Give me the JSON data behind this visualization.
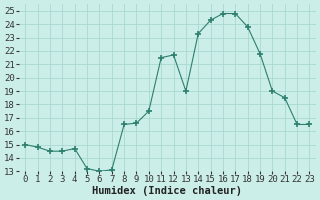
{
  "x": [
    0,
    1,
    2,
    3,
    4,
    5,
    6,
    7,
    8,
    9,
    10,
    11,
    12,
    13,
    14,
    15,
    16,
    17,
    18,
    19,
    20,
    21,
    22,
    23
  ],
  "y": [
    15.0,
    14.8,
    14.5,
    14.5,
    14.7,
    13.2,
    13.0,
    13.1,
    16.5,
    16.6,
    17.5,
    21.5,
    21.7,
    19.0,
    23.3,
    24.3,
    24.8,
    24.8,
    23.8,
    21.8,
    19.0,
    18.5,
    16.5,
    16.5
  ],
  "line_color": "#2d7f6e",
  "marker": "+",
  "marker_size": 5,
  "bg_color": "#cceee8",
  "grid_color": "#aad8d2",
  "xlabel": "Humidex (Indice chaleur)",
  "xlim": [
    -0.5,
    23.5
  ],
  "ylim": [
    13,
    25.5
  ],
  "yticks": [
    13,
    14,
    15,
    16,
    17,
    18,
    19,
    20,
    21,
    22,
    23,
    24,
    25
  ],
  "xticks": [
    0,
    1,
    2,
    3,
    4,
    5,
    6,
    7,
    8,
    9,
    10,
    11,
    12,
    13,
    14,
    15,
    16,
    17,
    18,
    19,
    20,
    21,
    22,
    23
  ],
  "xlabel_fontsize": 7.5,
  "tick_fontsize": 6.5
}
